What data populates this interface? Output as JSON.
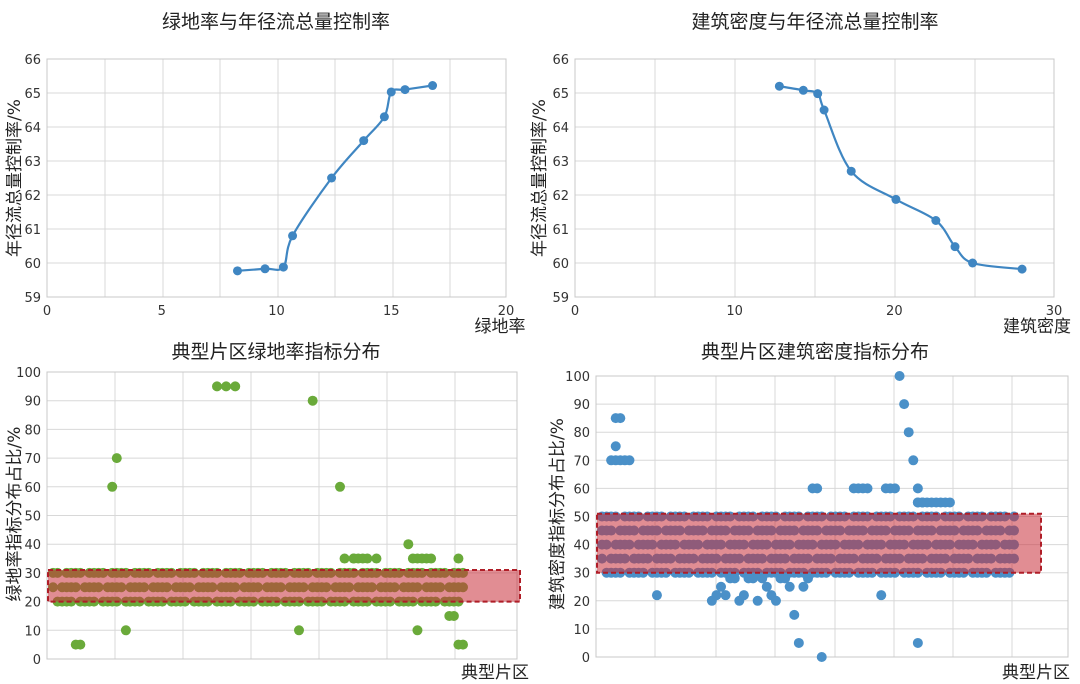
{
  "chart_data": [
    {
      "type": "line",
      "title": "绿地率与年径流总量控制率",
      "xlabel": "绿地率",
      "ylabel": "年径流总量控制率/%",
      "xlim": [
        0,
        20
      ],
      "ylim": [
        59,
        66
      ],
      "x_ticks": [
        "0",
        "5",
        "10",
        "15",
        "20"
      ],
      "y_ticks": [
        "59",
        "60",
        "61",
        "62",
        "63",
        "64",
        "65",
        "66"
      ],
      "grid": true,
      "color": "#3f86c2",
      "series": [
        {
          "x": [
            8.3,
            9.5,
            10.3,
            10.7,
            12.4,
            13.8,
            14.7,
            15.0,
            15.6,
            16.8
          ],
          "y": [
            59.77,
            59.83,
            59.88,
            60.8,
            62.5,
            63.6,
            64.3,
            65.03,
            65.1,
            65.22
          ]
        }
      ]
    },
    {
      "type": "line",
      "title": "建筑密度与年径流总量控制率",
      "xlabel": "建筑密度",
      "ylabel": "年径流总量控制率/%",
      "xlim": [
        0,
        30
      ],
      "ylim": [
        59,
        66
      ],
      "x_ticks": [
        "0",
        "10",
        "20",
        "30"
      ],
      "y_ticks": [
        "59",
        "60",
        "61",
        "62",
        "63",
        "64",
        "65",
        "66"
      ],
      "grid": true,
      "color": "#3f86c2",
      "series": [
        {
          "x": [
            12.8,
            14.3,
            15.2,
            15.6,
            17.3,
            20.1,
            22.6,
            23.8,
            24.9,
            28.0
          ],
          "y": [
            65.2,
            65.08,
            64.98,
            64.5,
            62.7,
            61.87,
            61.25,
            60.48,
            60.0,
            59.82
          ]
        }
      ]
    },
    {
      "type": "scatter",
      "title": "典型片区绿地率指标分布",
      "xlabel": "典型片区",
      "ylabel": "绿地率指标分布占比/%",
      "ylim": [
        0,
        100
      ],
      "y_ticks": [
        "0",
        "10",
        "20",
        "30",
        "40",
        "50",
        "60",
        "70",
        "80",
        "90",
        "100"
      ],
      "grid": true,
      "color": "#6aaa3a",
      "highlight_band": {
        "y": [
          20,
          31
        ],
        "color": "#c8303a"
      },
      "outliers": {
        "x": [
          5,
          6,
          13,
          14,
          16,
          36,
          38,
          40,
          54,
          57,
          63,
          64,
          66,
          66,
          67,
          68,
          69,
          71,
          78,
          79,
          80,
          80,
          81,
          82,
          83,
          87,
          88,
          89,
          89,
          90
        ],
        "y": [
          5,
          5,
          60,
          70,
          10,
          95,
          95,
          95,
          10,
          90,
          60,
          35,
          35,
          35,
          35,
          35,
          35,
          35,
          40,
          35,
          35,
          10,
          35,
          35,
          35,
          15,
          15,
          35,
          5,
          5
        ]
      },
      "band_values_y": [
        20,
        25,
        30
      ]
    },
    {
      "type": "scatter",
      "title": "典型片区建筑密度指标分布",
      "xlabel": "典型片区",
      "ylabel": "建筑密度指标分布占比/%",
      "ylim": [
        0,
        100
      ],
      "y_ticks": [
        "0",
        "10",
        "20",
        "30",
        "40",
        "50",
        "60",
        "70",
        "80",
        "90",
        "100"
      ],
      "grid": true,
      "color": "#4a90c8",
      "highlight_band": {
        "y": [
          30,
          51
        ],
        "color": "#c8303a"
      },
      "outliers": {
        "x": [
          2,
          3,
          3,
          3,
          4,
          4,
          5,
          6,
          12,
          24,
          25,
          26,
          27,
          28,
          29,
          30,
          31,
          32,
          33,
          34,
          35,
          36,
          37,
          38,
          39,
          40,
          41,
          42,
          43,
          44,
          45,
          46,
          47,
          48,
          55,
          56,
          57,
          58,
          61,
          62,
          63,
          64,
          65,
          66,
          67,
          68,
          69,
          69,
          69,
          69,
          70,
          70,
          70,
          71,
          72,
          73,
          74,
          75,
          76
        ],
        "y": [
          70,
          85,
          75,
          70,
          85,
          70,
          70,
          70,
          22,
          20,
          22,
          25,
          22,
          28,
          28,
          20,
          22,
          28,
          28,
          20,
          28,
          25,
          22,
          20,
          28,
          28,
          25,
          15,
          5,
          25,
          28,
          60,
          60,
          0,
          60,
          60,
          60,
          60,
          22,
          60,
          60,
          60,
          100,
          90,
          80,
          70,
          60,
          5,
          55,
          55,
          55,
          55,
          55,
          55,
          55,
          55,
          55,
          55,
          55
        ],
        "x_count": 82
      },
      "band_values_y": [
        30,
        35,
        40,
        45,
        50
      ]
    }
  ]
}
